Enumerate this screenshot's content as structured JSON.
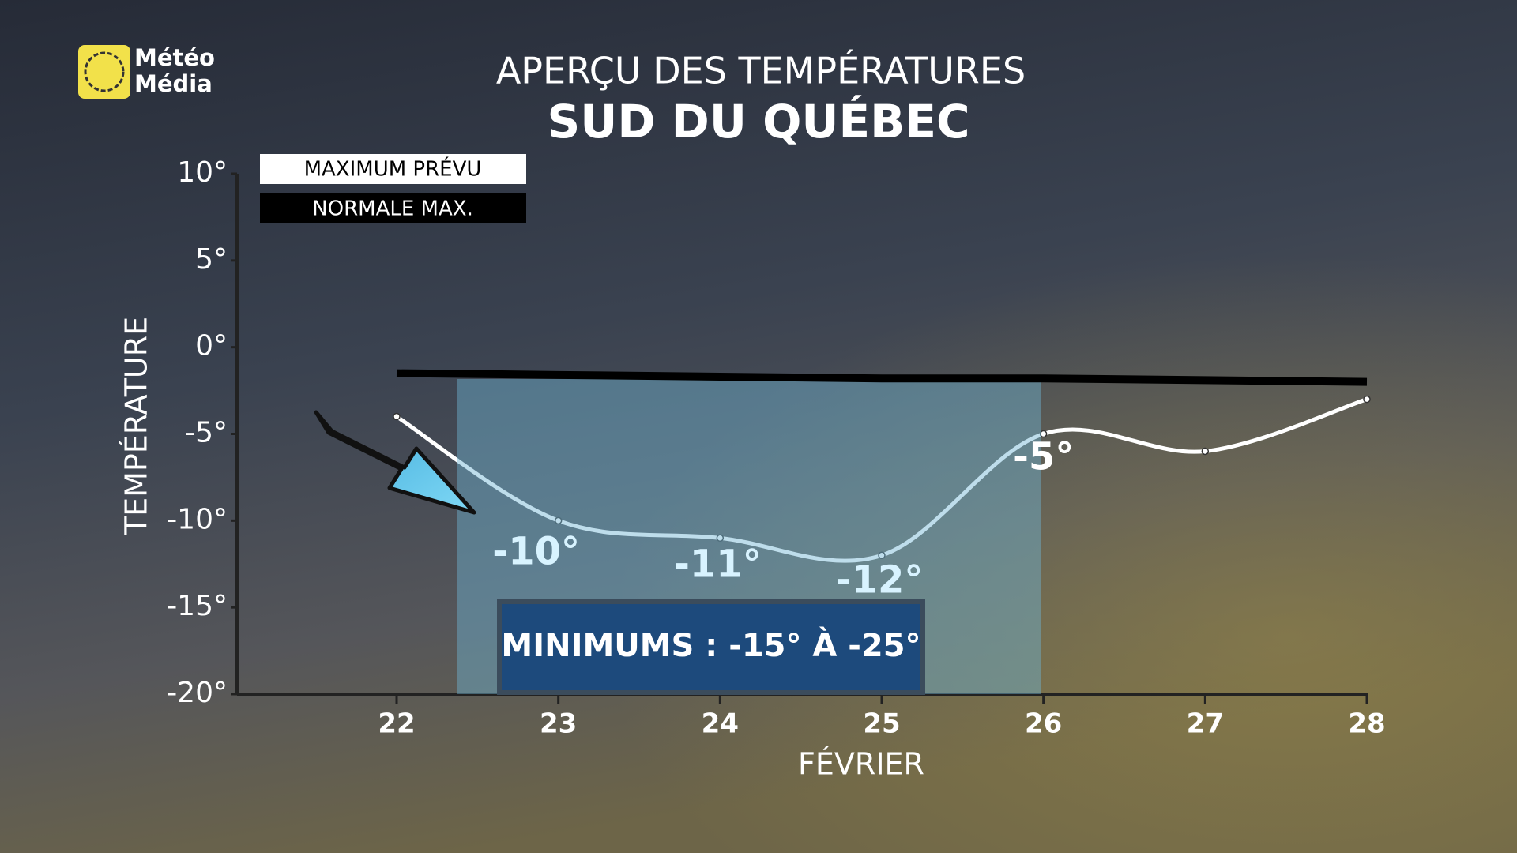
{
  "logo": {
    "line1": "Météo",
    "line2": "Média"
  },
  "chart_data": {
    "type": "line",
    "title": "APERÇU DES TEMPÉRATURES",
    "subtitle": "SUD DU QUÉBEC",
    "y_label": "TEMPÉRATURE",
    "x_label": "FÉVRIER",
    "annotation": "MINIMUMS : -15° À -25°",
    "categories": [
      "22",
      "23",
      "24",
      "25",
      "26",
      "27",
      "28"
    ],
    "series": [
      {
        "name": "MAXIMUM PRÉVU",
        "color": "#ffffff",
        "values": [
          -4,
          -10,
          -11,
          -12,
          -5,
          -6,
          -3
        ],
        "value_labels": [
          null,
          "-10°",
          "-11°",
          "-12°",
          "-5°",
          null,
          null
        ]
      },
      {
        "name": "NORMALE MAX.",
        "color": "#000000",
        "values": [
          -1.5,
          -1.6,
          -1.7,
          -1.8,
          -1.8,
          -1.9,
          -2.0
        ]
      }
    ],
    "ylim": [
      -20,
      10
    ],
    "yticks": [
      {
        "value": -20,
        "label": "-20°"
      },
      {
        "value": -15,
        "label": "-15°"
      },
      {
        "value": -10,
        "label": "-10°"
      },
      {
        "value": -5,
        "label": "-5°"
      },
      {
        "value": 0,
        "label": "0°"
      },
      {
        "value": 5,
        "label": "5°"
      },
      {
        "value": 10,
        "label": "10°"
      }
    ],
    "grid": false
  }
}
